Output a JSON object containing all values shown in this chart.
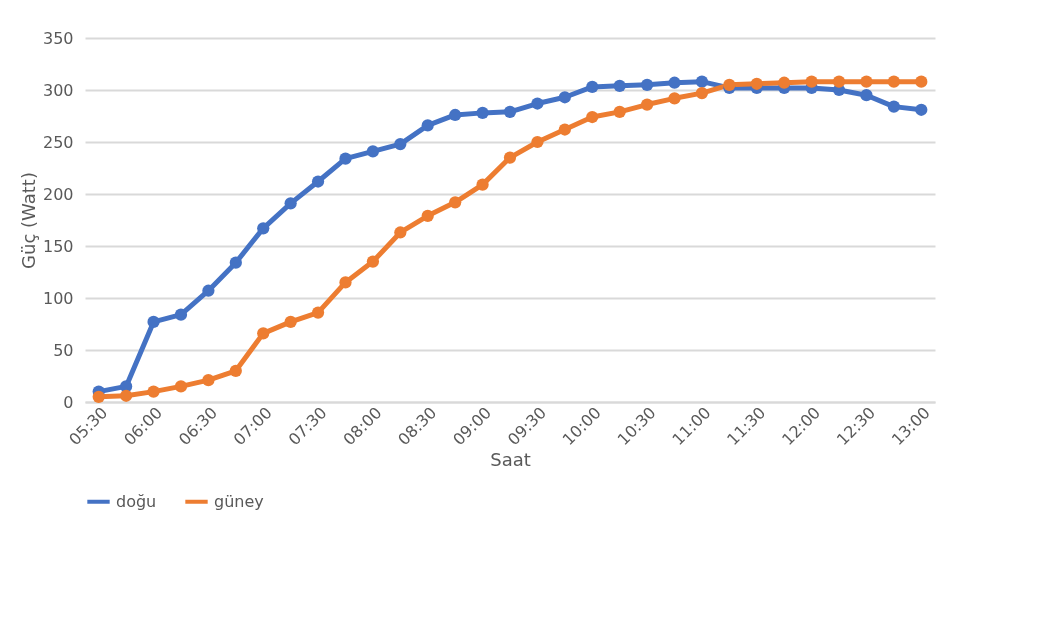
{
  "chart_data": {
    "type": "line",
    "xlabel": "Saat",
    "ylabel": "Güç (Watt)",
    "categories": [
      "05:30",
      null,
      "06:00",
      null,
      "06:30",
      null,
      "07:00",
      null,
      "07:30",
      null,
      "08:00",
      null,
      "08:30",
      null,
      "09:00",
      null,
      "09:30",
      null,
      "10:00",
      null,
      "10:30",
      null,
      "11:00",
      null,
      "11:30",
      null,
      "12:00",
      null,
      "12:30",
      null,
      "13:00"
    ],
    "series": [
      {
        "name": "doğu",
        "color": "#4472c4",
        "values": [
          10,
          15,
          77,
          84,
          107,
          134,
          167,
          191,
          212,
          234,
          241,
          248,
          266,
          276,
          278,
          279,
          287,
          293,
          303,
          304,
          305,
          307,
          308,
          302,
          302,
          302,
          302,
          300,
          295,
          284,
          281
        ]
      },
      {
        "name": "güney",
        "color": "#ed7d31",
        "values": [
          5,
          6,
          10,
          15,
          21,
          30,
          66,
          77,
          86,
          115,
          135,
          163,
          179,
          192,
          209,
          235,
          250,
          262,
          274,
          279,
          286,
          292,
          297,
          305,
          306,
          307,
          308,
          308,
          308,
          308,
          308
        ]
      }
    ],
    "ylim": [
      0,
      350
    ],
    "yticks": [
      0,
      50,
      100,
      150,
      200,
      250,
      300,
      350
    ],
    "grid": "y",
    "legend": "bottom",
    "marker": "circle",
    "line_style": "solid"
  }
}
